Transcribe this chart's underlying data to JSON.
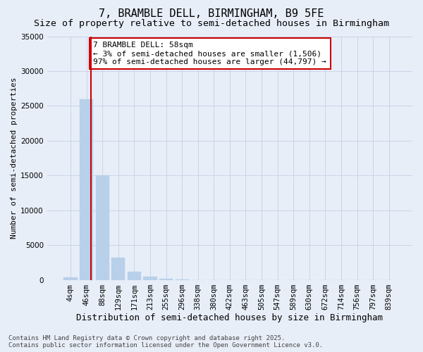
{
  "title": "7, BRAMBLE DELL, BIRMINGHAM, B9 5FE",
  "subtitle": "Size of property relative to semi-detached houses in Birmingham",
  "xlabel": "Distribution of semi-detached houses by size in Birmingham",
  "ylabel": "Number of semi-detached properties",
  "categories": [
    "4sqm",
    "46sqm",
    "88sqm",
    "129sqm",
    "171sqm",
    "213sqm",
    "255sqm",
    "296sqm",
    "338sqm",
    "380sqm",
    "422sqm",
    "463sqm",
    "505sqm",
    "547sqm",
    "589sqm",
    "630sqm",
    "672sqm",
    "714sqm",
    "756sqm",
    "797sqm",
    "839sqm"
  ],
  "values": [
    400,
    26000,
    15000,
    3200,
    1200,
    500,
    200,
    50,
    0,
    0,
    0,
    0,
    0,
    0,
    0,
    0,
    0,
    0,
    0,
    0,
    0
  ],
  "bar_color": "#b8d0ea",
  "bar_edgecolor": "#b8d0ea",
  "grid_color": "#c8d4e8",
  "background_color": "#e8eef8",
  "vline_x": 1.28,
  "vline_color": "#cc0000",
  "annotation_text": "7 BRAMBLE DELL: 58sqm\n← 3% of semi-detached houses are smaller (1,506)\n97% of semi-detached houses are larger (44,797) →",
  "annotation_box_facecolor": "#ffffff",
  "annotation_box_edgecolor": "#cc0000",
  "ylim": [
    0,
    35000
  ],
  "yticks": [
    0,
    5000,
    10000,
    15000,
    20000,
    25000,
    30000,
    35000
  ],
  "footer": "Contains HM Land Registry data © Crown copyright and database right 2025.\nContains public sector information licensed under the Open Government Licence v3.0.",
  "title_fontsize": 11,
  "subtitle_fontsize": 9.5,
  "xlabel_fontsize": 9,
  "ylabel_fontsize": 8,
  "tick_fontsize": 7.5,
  "annotation_fontsize": 8,
  "footer_fontsize": 6.5
}
